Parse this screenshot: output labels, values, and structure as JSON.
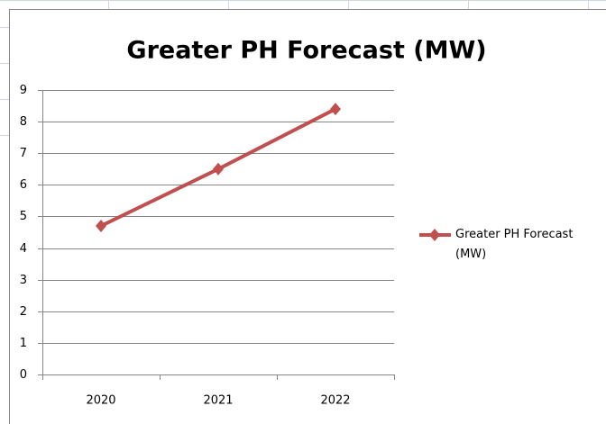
{
  "chart_data": {
    "type": "line",
    "title": "Greater PH Forecast (MW)",
    "categories": [
      "2020",
      "2021",
      "2022"
    ],
    "series": [
      {
        "name": "Greater PH Forecast (MW)",
        "color": "#c0504d",
        "values": [
          4.7,
          6.5,
          8.4
        ]
      }
    ],
    "ylim": [
      0,
      9
    ],
    "yticks": [
      0,
      1,
      2,
      3,
      4,
      5,
      6,
      7,
      8,
      9
    ],
    "grid": true,
    "legend": "right"
  }
}
